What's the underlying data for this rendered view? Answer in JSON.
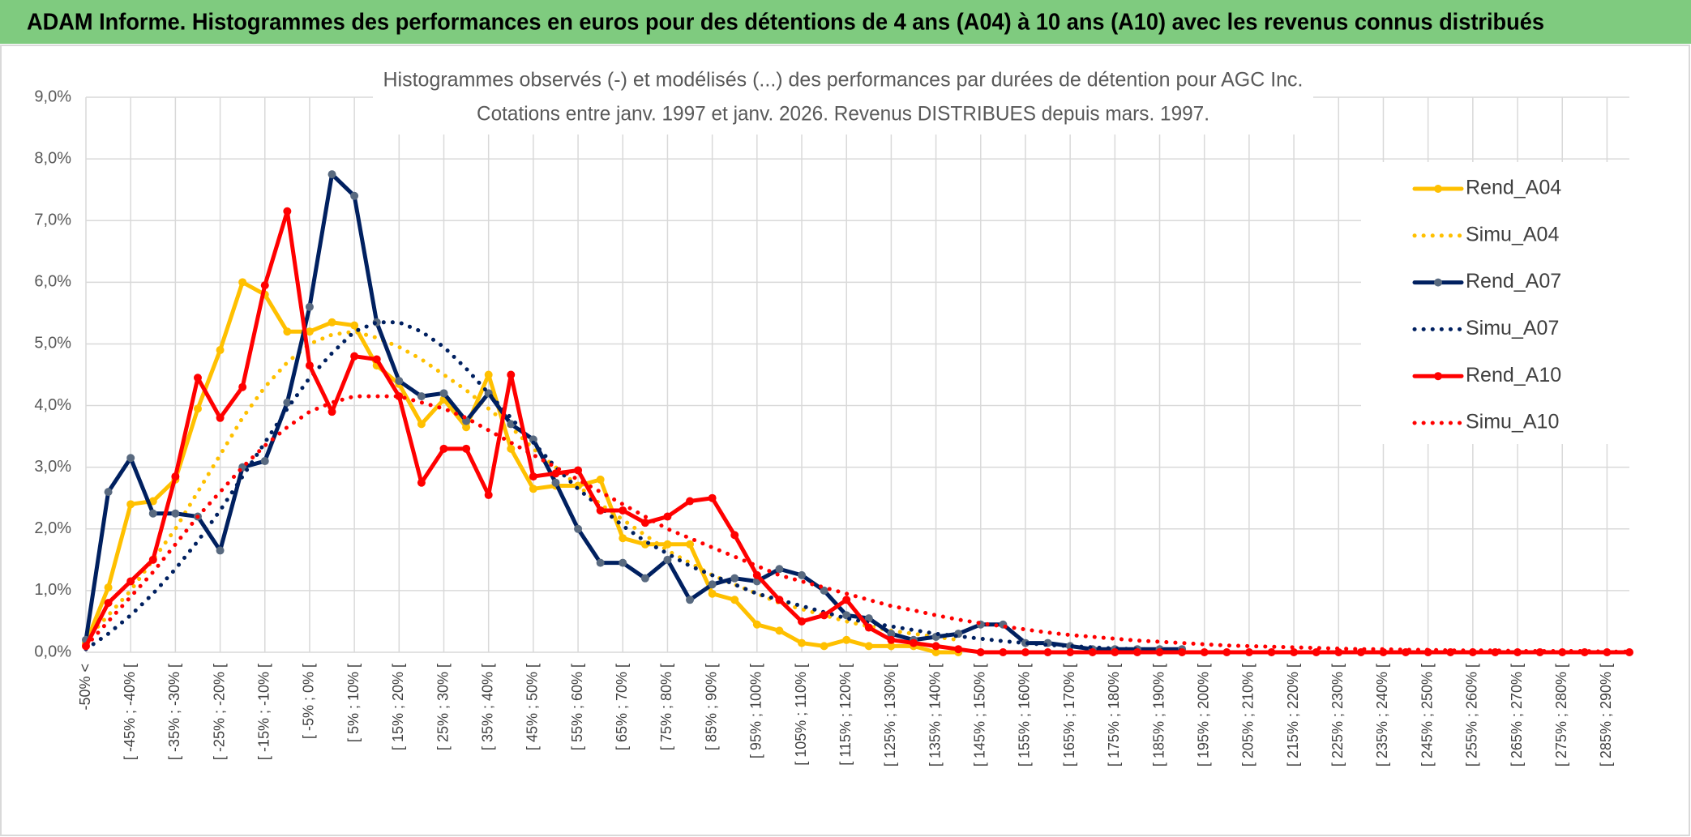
{
  "chart_data": {
    "type": "line",
    "title": "ADAM Informe. Histogrammes des performances en euros pour des détentions de 4 ans (A04) à 10 ans (A10) avec les revenus connus distribués",
    "subtitle": [
      "Histogrammes observés (-) et modélisés (...) des performances par durées de détention pour AGC Inc.",
      "Cotations entre janv. 1997 et janv. 2026. Revenus DISTRIBUES depuis mars. 1997."
    ],
    "categories": [
      "-50% <",
      null,
      "[ -45% ; -40% [",
      null,
      "[ -35% ; -30% [",
      null,
      "[ -25% ; -20% [",
      null,
      "[ -15% ; -10% [",
      null,
      "[ -5% ; 0% [",
      null,
      "[ 5% ; 10% [",
      null,
      "[ 15% ; 20% [",
      null,
      "[ 25% ; 30% [",
      null,
      "[ 35% ; 40% [",
      null,
      "[ 45% ; 50% [",
      null,
      "[ 55% ; 60% [",
      null,
      "[ 65% ; 70% [",
      null,
      "[ 75% ; 80% [",
      null,
      "[ 85% ; 90% [",
      null,
      "[ 95% ; 100% [",
      null,
      "[ 105% ; 110% [",
      null,
      "[ 115% ; 120% [",
      null,
      "[ 125% ; 130% [",
      null,
      "[ 135% ; 140% [",
      null,
      "[ 145% ; 150% [",
      null,
      "[ 155% ; 160% [",
      null,
      "[ 165% ; 170% [",
      null,
      "[ 175% ; 180% [",
      null,
      "[ 185% ; 190% [",
      null,
      "[ 195% ; 200% [",
      null,
      "[ 205% ; 210% [",
      null,
      "[ 215% ; 220% [",
      null,
      "[ 225% ; 230% [",
      null,
      "[ 235% ; 240% [",
      null,
      "[ 245% ; 250% [",
      null,
      "[ 255% ; 260% [",
      null,
      "[ 265% ; 270% [",
      null,
      "[ 275% ; 280% [",
      null,
      "[ 285% ; 290% [",
      null
    ],
    "series": [
      {
        "name": "Rend_A04",
        "color": "#FFC000",
        "line_style": "solid",
        "marker": true,
        "values": [
          0.15,
          1.05,
          2.4,
          2.45,
          2.8,
          3.95,
          4.9,
          6.0,
          5.8,
          5.2,
          5.2,
          5.35,
          5.3,
          4.65,
          4.35,
          3.7,
          4.1,
          3.65,
          4.5,
          3.3,
          2.65,
          2.7,
          2.7,
          2.8,
          1.85,
          1.75,
          1.75,
          1.75,
          0.95,
          0.85,
          0.45,
          0.35,
          0.15,
          0.1,
          0.2,
          0.1,
          0.1,
          0.1,
          0,
          0,
          null,
          null,
          null,
          null,
          null,
          null,
          null,
          null,
          null,
          null,
          null,
          null,
          null,
          null,
          null,
          null,
          null,
          null,
          null,
          null,
          null,
          null,
          null,
          null,
          null,
          null,
          null,
          null,
          null,
          null
        ]
      },
      {
        "name": "Simu_A04",
        "color": "#FFC000",
        "line_style": "dotted",
        "marker": false,
        "values": [
          0.2,
          0.6,
          1.0,
          1.5,
          2.0,
          2.6,
          3.2,
          3.8,
          4.3,
          4.7,
          5.0,
          5.15,
          5.2,
          5.1,
          4.95,
          4.75,
          4.5,
          4.25,
          3.95,
          3.65,
          3.3,
          3.0,
          2.7,
          2.4,
          2.15,
          1.9,
          1.65,
          1.45,
          1.25,
          1.1,
          0.95,
          0.8,
          0.7,
          0.6,
          0.5,
          0.42,
          0.35,
          0.3,
          0.25,
          0.2,
          null,
          null,
          null,
          null,
          null,
          null,
          null,
          null,
          null,
          null,
          null,
          null,
          null,
          null,
          null,
          null,
          null,
          null,
          null,
          null,
          null,
          null,
          null,
          null,
          null,
          null,
          null,
          null,
          null,
          null
        ]
      },
      {
        "name": "Rend_A07",
        "color": "#002060",
        "marker_color": "#596A80",
        "line_style": "solid",
        "marker": true,
        "values": [
          0.2,
          2.6,
          3.15,
          2.25,
          2.25,
          2.2,
          1.65,
          3.0,
          3.1,
          4.05,
          5.6,
          7.75,
          7.4,
          5.35,
          4.4,
          4.15,
          4.2,
          3.75,
          4.2,
          3.7,
          3.45,
          2.75,
          2.0,
          1.45,
          1.45,
          1.2,
          1.5,
          0.85,
          1.1,
          1.2,
          1.15,
          1.35,
          1.25,
          1.0,
          0.6,
          0.55,
          0.3,
          0.2,
          0.25,
          0.3,
          0.45,
          0.45,
          0.15,
          0.15,
          0.1,
          0.05,
          0.05,
          0.05,
          0.05,
          0.05,
          null,
          null,
          null,
          null,
          null,
          null,
          null,
          null,
          null,
          null,
          null,
          null,
          null,
          null,
          null,
          null,
          null,
          null,
          null,
          null
        ]
      },
      {
        "name": "Simu_A07",
        "color": "#002060",
        "line_style": "dotted",
        "marker": false,
        "values": [
          0.05,
          0.3,
          0.6,
          0.95,
          1.35,
          1.8,
          2.3,
          2.85,
          3.4,
          3.95,
          4.45,
          4.85,
          5.2,
          5.35,
          5.35,
          5.2,
          4.95,
          4.6,
          4.2,
          3.8,
          3.4,
          3.0,
          2.65,
          2.35,
          2.05,
          1.8,
          1.6,
          1.4,
          1.25,
          1.1,
          0.95,
          0.85,
          0.75,
          0.65,
          0.55,
          0.48,
          0.42,
          0.36,
          0.3,
          0.26,
          0.22,
          0.18,
          0.15,
          0.12,
          0.1,
          0.08,
          0.06,
          0.05,
          0.04,
          0.03,
          null,
          null,
          null,
          null,
          null,
          null,
          null,
          null,
          null,
          null,
          null,
          null,
          null,
          null,
          null,
          null,
          null,
          null,
          null,
          null
        ]
      },
      {
        "name": "Rend_A10",
        "color": "#FF0000",
        "line_style": "solid",
        "marker": true,
        "values": [
          0.1,
          0.8,
          1.15,
          1.5,
          2.85,
          4.45,
          3.8,
          4.3,
          5.95,
          7.15,
          4.65,
          3.9,
          4.8,
          4.75,
          4.15,
          2.75,
          3.3,
          3.3,
          2.55,
          4.5,
          2.85,
          2.9,
          2.95,
          2.3,
          2.3,
          2.1,
          2.2,
          2.45,
          2.5,
          1.9,
          1.25,
          0.85,
          0.5,
          0.6,
          0.85,
          0.4,
          0.2,
          0.15,
          0.1,
          0.05,
          0,
          0,
          0,
          0,
          0,
          0,
          0,
          0,
          0,
          0,
          0,
          0,
          0,
          0,
          0,
          0,
          0,
          0,
          0,
          0,
          0,
          0,
          0,
          0,
          0,
          0,
          0,
          0,
          0,
          0
        ]
      },
      {
        "name": "Simu_A10",
        "color": "#FF0000",
        "line_style": "dotted",
        "marker": false,
        "values": [
          0.1,
          0.5,
          0.9,
          1.3,
          1.75,
          2.2,
          2.6,
          3.0,
          3.35,
          3.65,
          3.9,
          4.05,
          4.15,
          4.15,
          4.15,
          4.05,
          3.95,
          3.8,
          3.6,
          3.4,
          3.2,
          3.0,
          2.8,
          2.6,
          2.4,
          2.2,
          2.0,
          1.85,
          1.7,
          1.55,
          1.4,
          1.25,
          1.15,
          1.05,
          0.95,
          0.85,
          0.75,
          0.68,
          0.6,
          0.53,
          0.47,
          0.42,
          0.37,
          0.32,
          0.28,
          0.25,
          0.22,
          0.19,
          0.17,
          0.15,
          0.13,
          0.11,
          0.1,
          0.09,
          0.08,
          0.07,
          0.06,
          0.05,
          0.05,
          0.04,
          0.04,
          0.03,
          0.03,
          0.03,
          0.02,
          0.02,
          0.02,
          0.02,
          0.01,
          0.01
        ]
      }
    ],
    "ylim": [
      0,
      9
    ],
    "yticks": [
      {
        "value": 0,
        "label": "0,0%"
      },
      {
        "value": 1,
        "label": "1,0%"
      },
      {
        "value": 2,
        "label": "2,0%"
      },
      {
        "value": 3,
        "label": "3,0%"
      },
      {
        "value": 4,
        "label": "4,0%"
      },
      {
        "value": 5,
        "label": "5,0%"
      },
      {
        "value": 6,
        "label": "6,0%"
      },
      {
        "value": 7,
        "label": "7,0%"
      },
      {
        "value": 8,
        "label": "8,0%"
      },
      {
        "value": 9,
        "label": "9,0%"
      }
    ],
    "grid": true,
    "legend": "right"
  }
}
